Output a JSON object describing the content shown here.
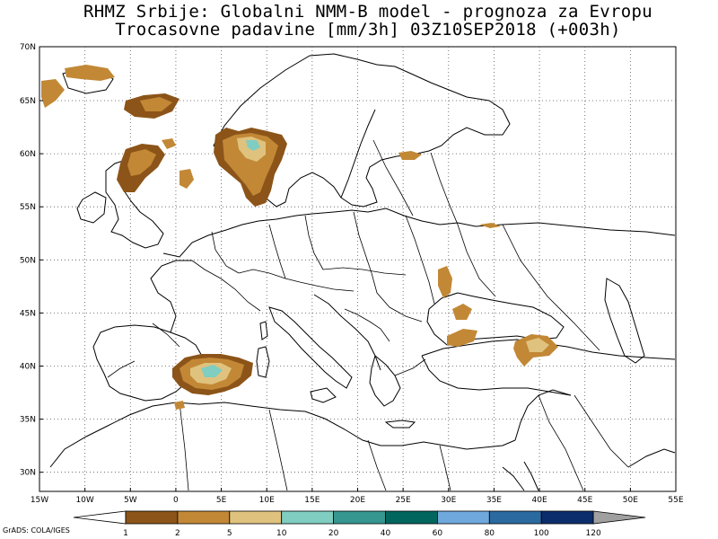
{
  "header": {
    "title_line1": "RHMZ Srbije: Globalni NMM-B model - prognoza za Evropu",
    "title_line2": "Trocasovne padavine [mm/3h] 03Z10SEP2018 (+003h)"
  },
  "map": {
    "lat_labels": [
      "70N",
      "65N",
      "60N",
      "55N",
      "50N",
      "45N",
      "40N",
      "35N",
      "30N"
    ],
    "lon_labels": [
      "15W",
      "10W",
      "5W",
      "0",
      "5E",
      "10E",
      "15E",
      "20E",
      "25E",
      "30E",
      "35E",
      "40E",
      "45E",
      "50E",
      "55E"
    ],
    "grid": "dotted"
  },
  "colorbar": {
    "levels": [
      "1",
      "2",
      "5",
      "10",
      "20",
      "40",
      "60",
      "80",
      "100",
      "120"
    ],
    "colors": [
      "#8c5418",
      "#c28836",
      "#dfc27d",
      "#80cdc1",
      "#35978f",
      "#01665e",
      "#6fa8dc",
      "#2b6aa0",
      "#0c2d6b"
    ],
    "under_color": "#ffffff",
    "over_color": "#a0a0a0"
  },
  "credit": "GrADS: COLA/IGES"
}
